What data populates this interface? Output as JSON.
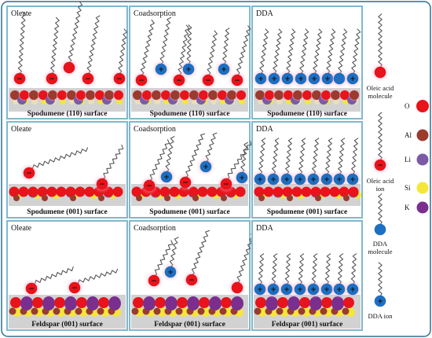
{
  "colors": {
    "frame": "#2f6f8c",
    "panel_border": "#7fb8cc",
    "surface_band": "#d2d2d2",
    "O": "#e8131b",
    "Al": "#9a3b2e",
    "Li": "#7b5aa6",
    "Si": "#f5e63a",
    "K": "#7a2f8f",
    "DDA": "#1d6fc2",
    "tail": "#555555",
    "glow": "#f6a9c8"
  },
  "panels": [
    {
      "title": "Oleate",
      "surface": "Spodumene (110) surface"
    },
    {
      "title": "Coadsorption",
      "surface": "Spodumene (110) surface"
    },
    {
      "title": "DDA",
      "surface": "Spodumene (110) surface"
    },
    {
      "title": "Oleate",
      "surface": "Spodumene (001) surface"
    },
    {
      "title": "Coadsorption",
      "surface": "Spodumene (001) surface"
    },
    {
      "title": "DDA",
      "surface": "Spodumene (001) surface"
    },
    {
      "title": "Oleate",
      "surface": "Feldspar (001) surface"
    },
    {
      "title": "Coadsorption",
      "surface": "Feldspar (001) surface"
    },
    {
      "title": "DDA",
      "surface": "Feldspar (001) surface"
    }
  ],
  "legend": {
    "oleic_acid_molecule": [
      "Oleic acid",
      "molecule"
    ],
    "oleic_acid_ion": [
      "Oleic acid",
      "ion"
    ],
    "dda_molecule": [
      "DDA",
      "molecule"
    ],
    "dda_ion": "DDA ion",
    "atoms": [
      {
        "key": "O",
        "label": "O"
      },
      {
        "key": "Al",
        "label": "Al"
      },
      {
        "key": "Li",
        "label": "Li"
      },
      {
        "key": "Si",
        "label": "Si"
      },
      {
        "key": "K",
        "label": "K"
      }
    ]
  },
  "symbols": {
    "minus": "−",
    "plus": "+"
  }
}
